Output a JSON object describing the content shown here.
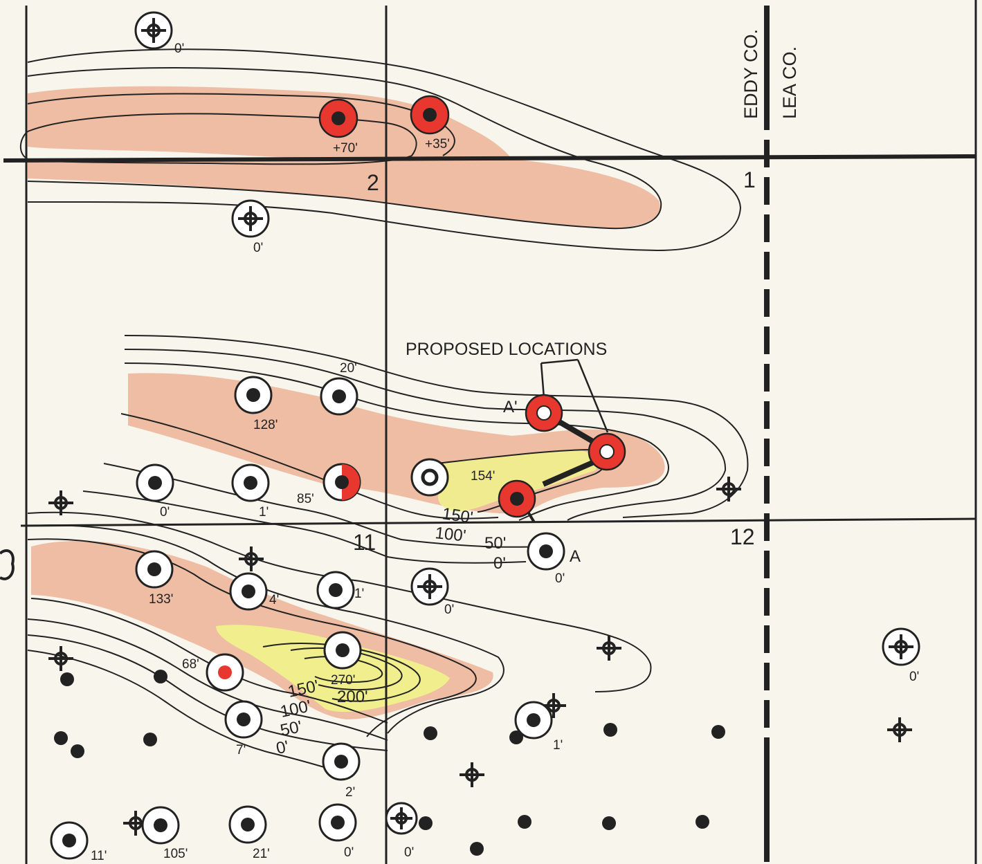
{
  "map": {
    "county_labels": {
      "west": "EDDY CO.",
      "east": "LEA CO."
    },
    "annotation": "PROPOSED LOCATIONS",
    "section_numbers": [
      {
        "id": "s2",
        "text": "2"
      },
      {
        "id": "s1",
        "text": "1"
      },
      {
        "id": "s11",
        "text": "11"
      },
      {
        "id": "s12",
        "text": "12"
      }
    ],
    "contour_labels": {
      "north_150": "150'",
      "north_100": "100'",
      "north_50": "50'",
      "north_0": "0'",
      "south_200": "200'",
      "south_150": "150'",
      "south_100": "100'",
      "south_50": "50'",
      "south_0": "0'"
    },
    "point_labels": {
      "a": "A",
      "a_prime": "A'"
    },
    "well_values": [
      {
        "id": "w1",
        "text": "0'"
      },
      {
        "id": "w2",
        "text": "+70'"
      },
      {
        "id": "w3",
        "text": "+35'"
      },
      {
        "id": "w4",
        "text": "0'"
      },
      {
        "id": "w5",
        "text": "20'"
      },
      {
        "id": "w6",
        "text": "128'"
      },
      {
        "id": "w7",
        "text": "85'"
      },
      {
        "id": "w8",
        "text": "0'"
      },
      {
        "id": "w9",
        "text": "1'"
      },
      {
        "id": "w10",
        "text": "154'"
      },
      {
        "id": "w11",
        "text": "0'"
      },
      {
        "id": "w12",
        "text": "133'"
      },
      {
        "id": "w13",
        "text": "4'"
      },
      {
        "id": "w14",
        "text": "1'"
      },
      {
        "id": "w15",
        "text": "0'"
      },
      {
        "id": "w16",
        "text": "270'"
      },
      {
        "id": "w17",
        "text": "68'"
      },
      {
        "id": "w18",
        "text": "7'"
      },
      {
        "id": "w19",
        "text": "2'"
      },
      {
        "id": "w20",
        "text": "1'"
      },
      {
        "id": "w21",
        "text": "0'"
      },
      {
        "id": "w22",
        "text": "11'"
      },
      {
        "id": "w23",
        "text": "105'"
      },
      {
        "id": "w24",
        "text": "21'"
      },
      {
        "id": "w25",
        "text": "0'"
      },
      {
        "id": "w26",
        "text": "0'"
      }
    ],
    "colors": {
      "paper": "#f7f5ec",
      "line": "#222222",
      "proposed_red": "#e8372e",
      "fill_salmon": "#ecb397",
      "fill_yellow": "#eff08c"
    }
  }
}
